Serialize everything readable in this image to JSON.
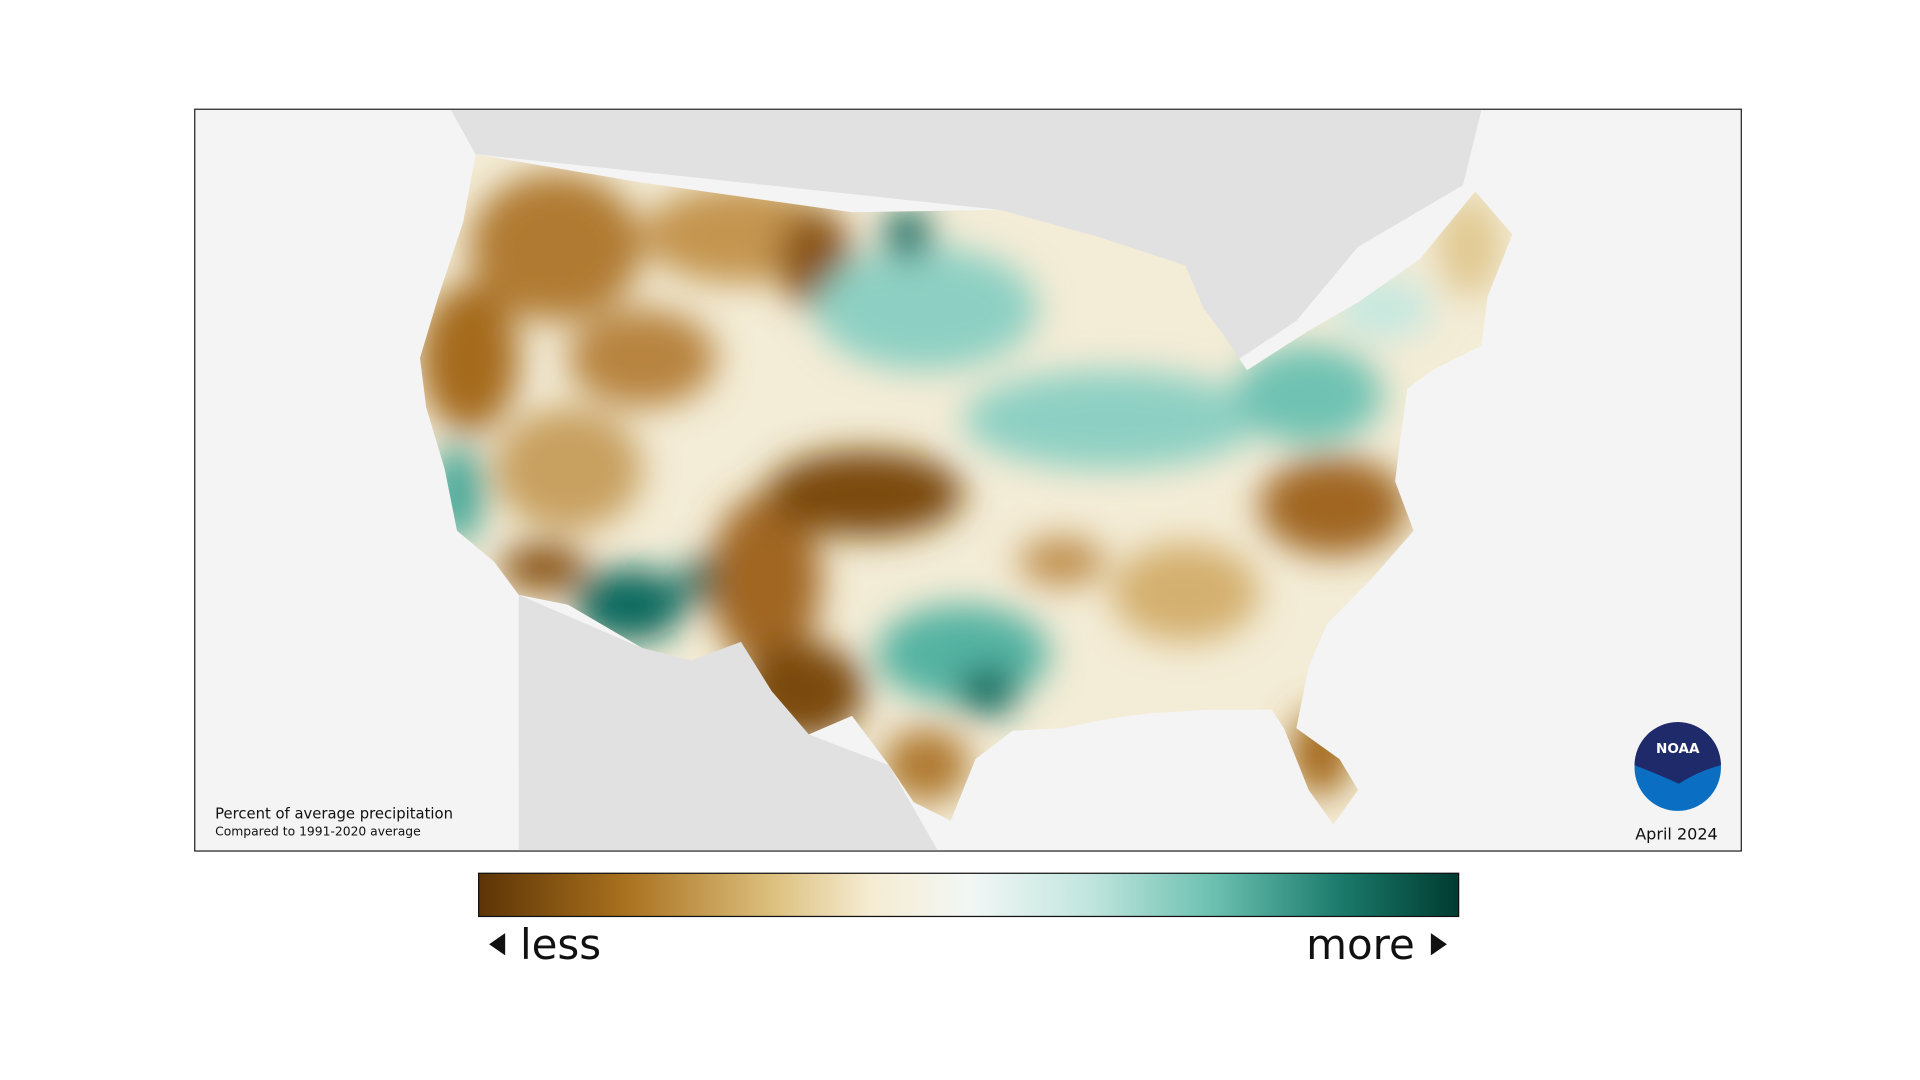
{
  "map": {
    "caption_title": "Percent of average precipitation",
    "caption_subtitle": "Compared to 1991-2020 average",
    "date": "April 2024"
  },
  "logo": {
    "text": "NOAA"
  },
  "legend": {
    "low_label": "less",
    "high_label": "more"
  }
}
